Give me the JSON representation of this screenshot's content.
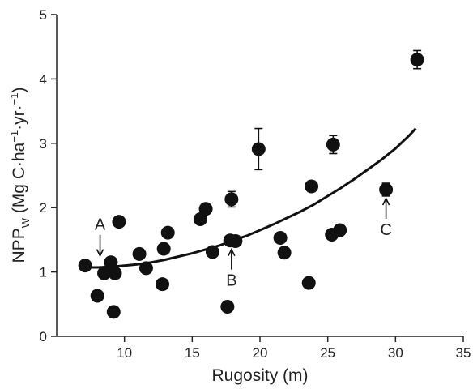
{
  "chart_data": {
    "type": "scatter",
    "xlabel": "Rugosity (m)",
    "ylabel": {
      "main": "NPP",
      "sub": "W",
      "unit_open": " (Mg C·ha",
      "exp1": "−1",
      "unit_mid": "·yr·",
      "exp2": "−1",
      "unit_close": ")"
    },
    "xlim": [
      5,
      35
    ],
    "ylim": [
      0,
      5
    ],
    "xticks": [
      10,
      15,
      20,
      25,
      30,
      35
    ],
    "yticks": [
      0,
      1,
      2,
      3,
      4,
      5
    ],
    "grid": false,
    "points": [
      {
        "x": 7.1,
        "y": 1.1,
        "err": 0
      },
      {
        "x": 8.0,
        "y": 0.63,
        "err": 0
      },
      {
        "x": 8.5,
        "y": 0.98,
        "err": 0
      },
      {
        "x": 9.0,
        "y": 1.15,
        "err": 0
      },
      {
        "x": 9.3,
        "y": 0.98,
        "err": 0
      },
      {
        "x": 9.2,
        "y": 0.38,
        "err": 0
      },
      {
        "x": 9.6,
        "y": 1.78,
        "err": 0
      },
      {
        "x": 11.1,
        "y": 1.28,
        "err": 0.06
      },
      {
        "x": 11.6,
        "y": 1.06,
        "err": 0
      },
      {
        "x": 12.8,
        "y": 0.81,
        "err": 0
      },
      {
        "x": 12.9,
        "y": 1.36,
        "err": 0
      },
      {
        "x": 13.2,
        "y": 1.61,
        "err": 0
      },
      {
        "x": 15.6,
        "y": 1.82,
        "err": 0
      },
      {
        "x": 16.0,
        "y": 1.98,
        "err": 0.08
      },
      {
        "x": 16.5,
        "y": 1.31,
        "err": 0
      },
      {
        "x": 17.6,
        "y": 0.46,
        "err": 0
      },
      {
        "x": 17.8,
        "y": 1.49,
        "err": 0
      },
      {
        "x": 17.9,
        "y": 2.13,
        "err": 0.12
      },
      {
        "x": 18.2,
        "y": 1.48,
        "err": 0
      },
      {
        "x": 19.9,
        "y": 2.91,
        "err": 0.32
      },
      {
        "x": 21.5,
        "y": 1.53,
        "err": 0
      },
      {
        "x": 21.8,
        "y": 1.3,
        "err": 0
      },
      {
        "x": 23.6,
        "y": 0.83,
        "err": 0
      },
      {
        "x": 23.8,
        "y": 2.33,
        "err": 0.08
      },
      {
        "x": 25.3,
        "y": 1.58,
        "err": 0
      },
      {
        "x": 25.4,
        "y": 2.98,
        "err": 0.14
      },
      {
        "x": 25.9,
        "y": 1.65,
        "err": 0
      },
      {
        "x": 29.3,
        "y": 2.28,
        "err": 0.1
      },
      {
        "x": 31.6,
        "y": 4.3,
        "err": 0.14
      }
    ],
    "fit_curve": {
      "x": [
        7.0,
        8.0,
        9.0,
        10.0,
        11.0,
        12.0,
        13.0,
        14.0,
        15.0,
        16.0,
        17.0,
        18.0,
        19.0,
        20.0,
        21.0,
        22.0,
        23.0,
        24.0,
        25.0,
        26.0,
        27.0,
        28.0,
        29.0,
        30.0,
        31.0,
        31.5
      ],
      "y": [
        1.07,
        1.07,
        1.08,
        1.1,
        1.12,
        1.15,
        1.19,
        1.24,
        1.29,
        1.35,
        1.41,
        1.49,
        1.56,
        1.65,
        1.74,
        1.84,
        1.94,
        2.05,
        2.18,
        2.31,
        2.45,
        2.6,
        2.75,
        2.92,
        3.12,
        3.23
      ]
    },
    "annotations": [
      {
        "label": "A",
        "x": 8.2,
        "point_y": 1.1,
        "arrow": "down"
      },
      {
        "label": "B",
        "x": 17.9,
        "point_y": 1.49,
        "arrow": "up"
      },
      {
        "label": "C",
        "x": 29.3,
        "point_y": 2.28,
        "arrow": "up"
      }
    ]
  }
}
